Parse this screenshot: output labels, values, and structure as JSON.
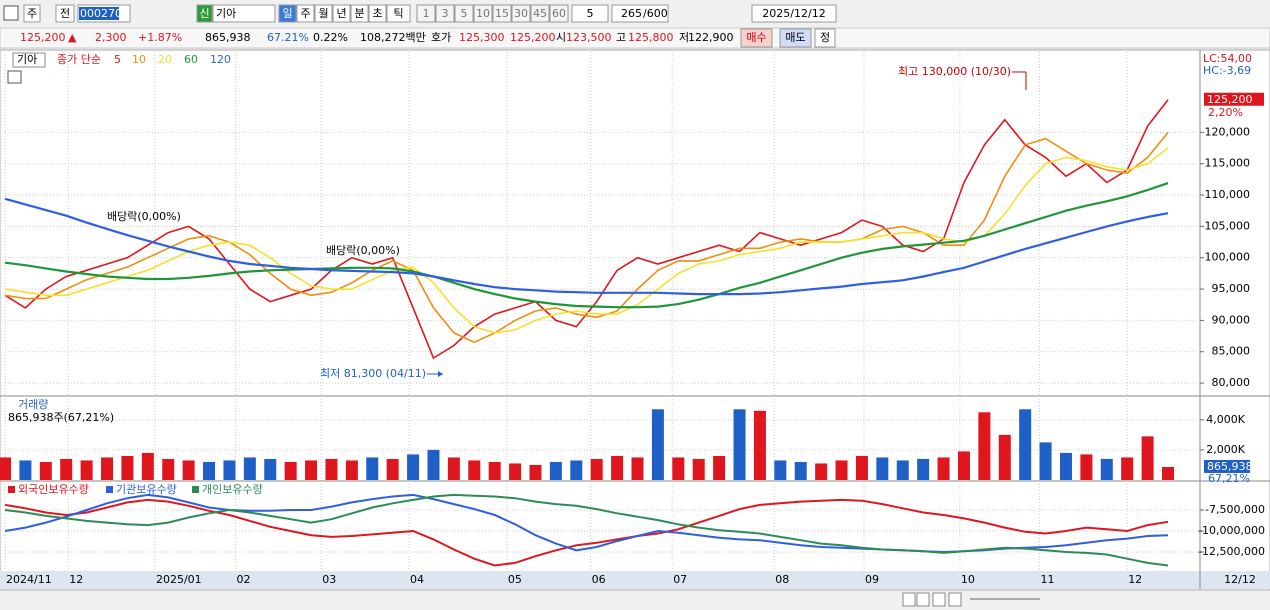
{
  "toolbar": {
    "tabs": [
      "주",
      "전"
    ],
    "code": "000270",
    "badge": "신",
    "name": "기아",
    "periods": [
      "일",
      "주",
      "월",
      "년",
      "분",
      "초",
      "틱"
    ],
    "intervals": [
      "1",
      "3",
      "5",
      "10",
      "15",
      "30",
      "45",
      "60"
    ],
    "interval_value": "5",
    "count": "265",
    "count_max": "/600",
    "date": "2025/12/12"
  },
  "info_bar": {
    "price": "125,200",
    "arrow": "▲",
    "change": "2,300",
    "change_pct": "+1.87%",
    "volume": "865,938",
    "volume_ratio": "67.21%",
    "turnover": "0.22%",
    "amount": "108,272백만",
    "quote_label": "호가",
    "ask": "125,300",
    "bid": "125,200",
    "open_label": "시",
    "open": "123,500",
    "high_label": "고",
    "high": "125,800",
    "low_label": "저",
    "low": "122,900",
    "buttons": [
      "매수",
      "매도",
      "정"
    ]
  },
  "x_axis_end_label": "12/12",
  "chart_data": [
    {
      "type": "line",
      "legend_label": "기아",
      "legend_title": "종가 단순",
      "lc_label": "LC:54,00",
      "hc_label": "HC:-3,69",
      "last_label": "125,200",
      "last_change_label": "2,20%",
      "annotations": [
        "최고 130,000 (10/30)",
        "최저 81,300 (04/11)",
        "배당락(0,00%)",
        "배당락(0,00%)"
      ],
      "xlim": [
        0,
        57
      ],
      "ylim": [
        78100,
        132500
      ],
      "yticks": [
        {
          "value": 80000,
          "label": "80,000"
        },
        {
          "value": 85000,
          "label": "85,000"
        },
        {
          "value": 90000,
          "label": "90,000"
        },
        {
          "value": 95000,
          "label": "95,000"
        },
        {
          "value": 100000,
          "label": "100,000"
        },
        {
          "value": 105000,
          "label": "105,000"
        },
        {
          "value": 110000,
          "label": "110,000"
        },
        {
          "value": 115000,
          "label": "115,000"
        },
        {
          "value": 120000,
          "label": "120,000"
        }
      ],
      "grid": true,
      "series": [
        {
          "name": "5",
          "color": "#e0161e",
          "values": [
            94000,
            92000,
            95000,
            97000,
            98000,
            99000,
            100000,
            102000,
            104000,
            105000,
            103000,
            99000,
            95000,
            93000,
            94000,
            95000,
            98000,
            100000,
            99000,
            100000,
            92000,
            84000,
            86000,
            89000,
            91000,
            92000,
            93000,
            90000,
            89000,
            93000,
            98000,
            100000,
            99000,
            100000,
            101000,
            102000,
            101000,
            104000,
            103000,
            102000,
            103000,
            104000,
            106000,
            105000,
            102000,
            101000,
            103000,
            112000,
            118000,
            122000,
            118000,
            116000,
            113000,
            115000,
            112000,
            114000,
            121000,
            125200
          ]
        },
        {
          "name": "10",
          "color": "#f28c0f",
          "values": [
            94000,
            93500,
            93500,
            95000,
            96500,
            97500,
            98500,
            100000,
            101500,
            103000,
            103500,
            102500,
            100500,
            97500,
            95000,
            94000,
            94500,
            96000,
            98000,
            99500,
            98000,
            92000,
            88000,
            86500,
            88000,
            90000,
            91500,
            92000,
            91000,
            90500,
            91500,
            95000,
            98000,
            99500,
            99500,
            100500,
            101500,
            101500,
            102500,
            103000,
            102500,
            102500,
            103000,
            104500,
            105000,
            104000,
            102000,
            102000,
            106000,
            113000,
            118000,
            119000,
            117000,
            115000,
            114000,
            113500,
            116000,
            120000
          ]
        },
        {
          "name": "20",
          "color": "#f5e12a",
          "values": [
            95000,
            94500,
            94000,
            94000,
            95000,
            96000,
            97000,
            98000,
            99500,
            101000,
            102000,
            102500,
            102000,
            100000,
            97500,
            95500,
            95000,
            95000,
            96500,
            98000,
            98500,
            96000,
            92000,
            89000,
            88000,
            88500,
            90000,
            91000,
            91500,
            91000,
            91000,
            92500,
            95000,
            97500,
            99000,
            99500,
            100500,
            101000,
            101500,
            102500,
            102500,
            102500,
            103000,
            103500,
            104000,
            104000,
            103000,
            102500,
            103500,
            107000,
            111500,
            115000,
            116000,
            115500,
            114500,
            114000,
            115000,
            117500
          ]
        },
        {
          "name": "60",
          "color": "#1e9638",
          "values": [
            99200,
            98800,
            98300,
            97800,
            97400,
            97000,
            96800,
            96600,
            96600,
            96800,
            97100,
            97500,
            97800,
            98000,
            98100,
            98200,
            98300,
            98400,
            98400,
            98300,
            97800,
            97000,
            96000,
            95000,
            94200,
            93500,
            93000,
            92600,
            92300,
            92200,
            92100,
            92100,
            92200,
            92600,
            93300,
            94200,
            95200,
            96000,
            97000,
            98000,
            99000,
            100000,
            100800,
            101400,
            101800,
            102100,
            102400,
            102700,
            103500,
            104500,
            105500,
            106500,
            107500,
            108300,
            109000,
            109800,
            110800,
            111900
          ]
        },
        {
          "name": "120",
          "color": "#2f5fe0",
          "values": [
            109400,
            108500,
            107600,
            106700,
            105600,
            104600,
            103600,
            102700,
            101800,
            101000,
            100200,
            99500,
            99000,
            98700,
            98400,
            98200,
            98000,
            97900,
            97800,
            97700,
            97500,
            97000,
            96400,
            95800,
            95300,
            95000,
            94800,
            94600,
            94500,
            94400,
            94400,
            94400,
            94400,
            94300,
            94200,
            94200,
            94200,
            94300,
            94500,
            94800,
            95100,
            95400,
            95800,
            96100,
            96400,
            97000,
            97700,
            98400,
            99400,
            100400,
            101400,
            102300,
            103200,
            104100,
            105000,
            105800,
            106500,
            107100
          ]
        }
      ]
    },
    {
      "type": "bar",
      "title": "거래량",
      "subtitle": "865,938주(67,21%)",
      "last_label": "865,938",
      "last_pct_label": "67,21%",
      "xlim": [
        0,
        57
      ],
      "ylim": [
        0,
        5450
      ],
      "yticks": [
        {
          "value": 2000,
          "label": "2,000K"
        },
        {
          "value": 4000,
          "label": "4,000K"
        }
      ],
      "up_color": "#e0161e",
      "down_color": "#1f5fc8",
      "values": [
        1500,
        1300,
        1200,
        1400,
        1300,
        1500,
        1600,
        1800,
        1400,
        1300,
        1200,
        1300,
        1500,
        1400,
        1200,
        1300,
        1400,
        1300,
        1500,
        1400,
        1700,
        2000,
        1500,
        1300,
        1200,
        1100,
        1000,
        1200,
        1300,
        1400,
        1600,
        1500,
        4700,
        1500,
        1400,
        1600,
        4700,
        4600,
        1300,
        1200,
        1100,
        1300,
        1600,
        1500,
        1300,
        1400,
        1500,
        1900,
        4500,
        3000,
        4700,
        2500,
        1800,
        1700,
        1400,
        1500,
        2900,
        865.938
      ]
    },
    {
      "type": "line",
      "xlim": [
        0,
        57
      ],
      "ylim": [
        -14640000,
        -4290000
      ],
      "yticks": [
        {
          "value": -7500000,
          "label": "-7,500,000"
        },
        {
          "value": -10000000,
          "label": "-10,000,000"
        },
        {
          "value": -12500000,
          "label": "-12,500,000"
        }
      ],
      "xticks": [
        {
          "value": 0,
          "label": "2024/11"
        },
        {
          "value": 3.1,
          "label": "12"
        },
        {
          "value": 7.35,
          "label": "2025/01"
        },
        {
          "value": 11.3,
          "label": "02"
        },
        {
          "value": 15.5,
          "label": "03"
        },
        {
          "value": 19.8,
          "label": "04"
        },
        {
          "value": 24.6,
          "label": "05"
        },
        {
          "value": 28.7,
          "label": "06"
        },
        {
          "value": 32.7,
          "label": "07"
        },
        {
          "value": 37.7,
          "label": "08"
        },
        {
          "value": 42.1,
          "label": "09"
        },
        {
          "value": 46.8,
          "label": "10"
        },
        {
          "value": 50.7,
          "label": "11"
        },
        {
          "value": 55.0,
          "label": "12"
        }
      ],
      "series": [
        {
          "name": "외국인보유수량",
          "color": "#e0161e",
          "values": [
            -6900000,
            -7300000,
            -7800000,
            -8100000,
            -7800000,
            -7200000,
            -6600000,
            -6300000,
            -6500000,
            -7000000,
            -7600000,
            -8100000,
            -8800000,
            -9500000,
            -10000000,
            -10500000,
            -10700000,
            -10600000,
            -10400000,
            -10200000,
            -10000000,
            -11000000,
            -12200000,
            -13300000,
            -14100000,
            -13800000,
            -13000000,
            -12300000,
            -11700000,
            -11400000,
            -11000000,
            -10600000,
            -10300000,
            -9800000,
            -9000000,
            -8200000,
            -7400000,
            -6900000,
            -6700000,
            -6500000,
            -6400000,
            -6300000,
            -6400000,
            -6800000,
            -7300000,
            -7800000,
            -8100000,
            -8500000,
            -9000000,
            -9600000,
            -10100000,
            -10300000,
            -10000000,
            -9600000,
            -9800000,
            -10000000,
            -9300000,
            -8900000
          ]
        },
        {
          "name": "기관보유수량",
          "color": "#2f5fe0",
          "values": [
            -10000000,
            -9600000,
            -9000000,
            -8300000,
            -7500000,
            -6700000,
            -6100000,
            -5700000,
            -6000000,
            -6600000,
            -7200000,
            -7500000,
            -7600000,
            -7600000,
            -7500000,
            -7500000,
            -7100000,
            -6600000,
            -6200000,
            -5900000,
            -5700000,
            -6200000,
            -6800000,
            -7400000,
            -8100000,
            -9200000,
            -10500000,
            -11500000,
            -12300000,
            -11900000,
            -11200000,
            -10600000,
            -10000000,
            -10200000,
            -10500000,
            -10800000,
            -11000000,
            -11100000,
            -11400000,
            -11700000,
            -11900000,
            -12000000,
            -12100000,
            -12200000,
            -12300000,
            -12400000,
            -12500000,
            -12400000,
            -12300000,
            -12100000,
            -12000000,
            -11900000,
            -11700000,
            -11400000,
            -11100000,
            -10900000,
            -10600000,
            -10500000
          ]
        },
        {
          "name": "개인보유수량",
          "color": "#2e8b57",
          "values": [
            -7500000,
            -7800000,
            -8200000,
            -8500000,
            -8800000,
            -9000000,
            -9200000,
            -9300000,
            -9000000,
            -8400000,
            -7900000,
            -7500000,
            -7800000,
            -8200000,
            -8600000,
            -9000000,
            -8600000,
            -7900000,
            -7200000,
            -6700000,
            -6300000,
            -5900000,
            -5700000,
            -5800000,
            -5900000,
            -6100000,
            -6500000,
            -6800000,
            -7000000,
            -7400000,
            -7900000,
            -8300000,
            -8700000,
            -9200000,
            -9600000,
            -9900000,
            -10100000,
            -10300000,
            -10700000,
            -11100000,
            -11500000,
            -11700000,
            -12000000,
            -12200000,
            -12300000,
            -12400000,
            -12600000,
            -12400000,
            -12200000,
            -12000000,
            -12100000,
            -12300000,
            -12500000,
            -12600000,
            -12800000,
            -13300000,
            -13800000,
            -14100000
          ]
        }
      ]
    }
  ]
}
